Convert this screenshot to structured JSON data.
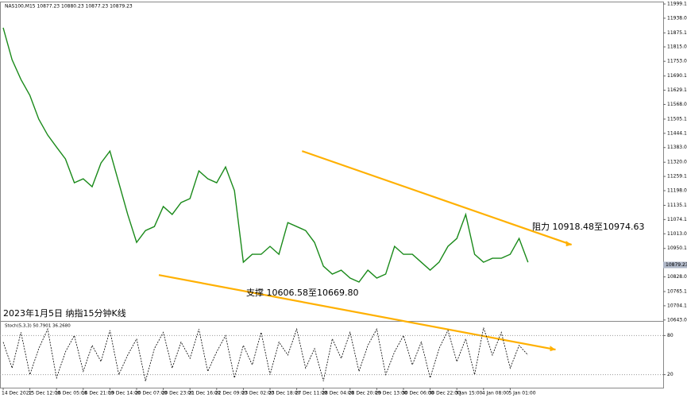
{
  "chart_data": [
    {
      "type": "line",
      "title": "NAS100,M15  10877.23 10880.23 10877.23 10879.23",
      "annotation": "2023年1月5日 纳指15分钟K线",
      "resistance_label": "阻力 10918.48至10974.63",
      "support_label": "支撑 10606.58至10669.80",
      "current_price": {
        "value": 10879.23,
        "label": "10879.23"
      },
      "categories": [
        "14 Dec 2022",
        null,
        null,
        "15 Dec 12:00",
        null,
        null,
        "16 Dec 05:00",
        null,
        null,
        "16 Dec 21:00",
        null,
        null,
        "19 Dec 14:00",
        null,
        null,
        "20 Dec 07:00",
        null,
        null,
        "20 Dec 23:00",
        null,
        null,
        "21 Dec 16:00",
        null,
        null,
        "22 Dec 09:00",
        null,
        null,
        "23 Dec 02:00",
        null,
        null,
        "23 Dec 18:00",
        null,
        null,
        "27 Dec 11:00",
        null,
        null,
        "28 Dec 04:00",
        null,
        null,
        "28 Dec 20:00",
        null,
        null,
        "29 Dec 13:00",
        null,
        null,
        "30 Dec 06:00",
        null,
        null,
        "30 Dec 22:00",
        null,
        null,
        "3 Jan 15:00",
        null,
        null,
        "4 Jan 08:00",
        null,
        null,
        "5 Jan 01:00",
        null,
        null
      ],
      "series": [
        {
          "name": "NAS100",
          "color": "#1a8a1a",
          "values": [
            11897,
            11760,
            11675,
            11607,
            11505,
            11437,
            11385,
            11334,
            11232,
            11249,
            11215,
            11317,
            11368,
            11232,
            11096,
            10976,
            11027,
            11044,
            11130,
            11096,
            11147,
            11164,
            11283,
            11249,
            11232,
            11300,
            11198,
            10891,
            10925,
            10925,
            10959,
            10925,
            11061,
            11044,
            11027,
            10976,
            10874,
            10840,
            10857,
            10823,
            10806,
            10857,
            10823,
            10840,
            10959,
            10925,
            10925,
            10891,
            10857,
            10891,
            10959,
            10993,
            11096,
            10925,
            10891,
            10908,
            10908,
            10925,
            10993,
            10891
          ]
        }
      ],
      "trendlines": [
        {
          "color": "#ffb000",
          "x": [
            33.6,
            63.9
          ],
          "y": [
            11368,
            10966
          ]
        },
        {
          "color": "#ffb000",
          "x": [
            17.5,
            62.1
          ],
          "y": [
            10836,
            10516
          ]
        }
      ],
      "ylim": [
        10639,
        12006
      ],
      "yticks": [
        {
          "value": 11999.1,
          "label": "11999.10"
        },
        {
          "value": 11938.05,
          "label": "11938.05"
        },
        {
          "value": 11875.1,
          "label": "11875.10"
        },
        {
          "value": 11815.05,
          "label": "11815.05"
        },
        {
          "value": 11753.05,
          "label": "11753.05"
        },
        {
          "value": 11690.15,
          "label": "11690.15"
        },
        {
          "value": 11629.1,
          "label": "11629.10"
        },
        {
          "value": 11568.05,
          "label": "11568.05"
        },
        {
          "value": 11505.1,
          "label": "11505.10"
        },
        {
          "value": 11444.1,
          "label": "11444.10"
        },
        {
          "value": 11383.05,
          "label": "11383.05"
        },
        {
          "value": 11320.05,
          "label": "11320.05"
        },
        {
          "value": 11259.1,
          "label": "11259.10"
        },
        {
          "value": 11198.05,
          "label": "11198.05"
        },
        {
          "value": 11135.1,
          "label": "11135.10"
        },
        {
          "value": 11074.1,
          "label": "11074.10"
        },
        {
          "value": 11013.05,
          "label": "11013.05"
        },
        {
          "value": 10950.1,
          "label": "10950.10"
        },
        {
          "value": 10828.05,
          "label": "10828.05"
        },
        {
          "value": 10765.1,
          "label": "10765.10"
        },
        {
          "value": 10704.1,
          "label": "10704.10"
        },
        {
          "value": 10643.05,
          "label": "10643.05"
        }
      ]
    },
    {
      "type": "line",
      "title": "Stoch(5,3,3) 50.7901 36.2680",
      "series": [
        {
          "name": "Stoch",
          "color": "#000000",
          "values": [
            70,
            30,
            85,
            20,
            60,
            90,
            15,
            55,
            80,
            25,
            65,
            40,
            88,
            20,
            50,
            75,
            10,
            60,
            85,
            30,
            70,
            45,
            90,
            25,
            55,
            80,
            15,
            65,
            35,
            85,
            20,
            70,
            50,
            90,
            30,
            60,
            10,
            75,
            45,
            85,
            25,
            65,
            90,
            20,
            55,
            80,
            35,
            70,
            15,
            60,
            88,
            40,
            75,
            20,
            92,
            50,
            85,
            30,
            65,
            50
          ]
        }
      ],
      "ylim": [
        0,
        100
      ],
      "yticks": [
        20,
        80
      ]
    }
  ]
}
